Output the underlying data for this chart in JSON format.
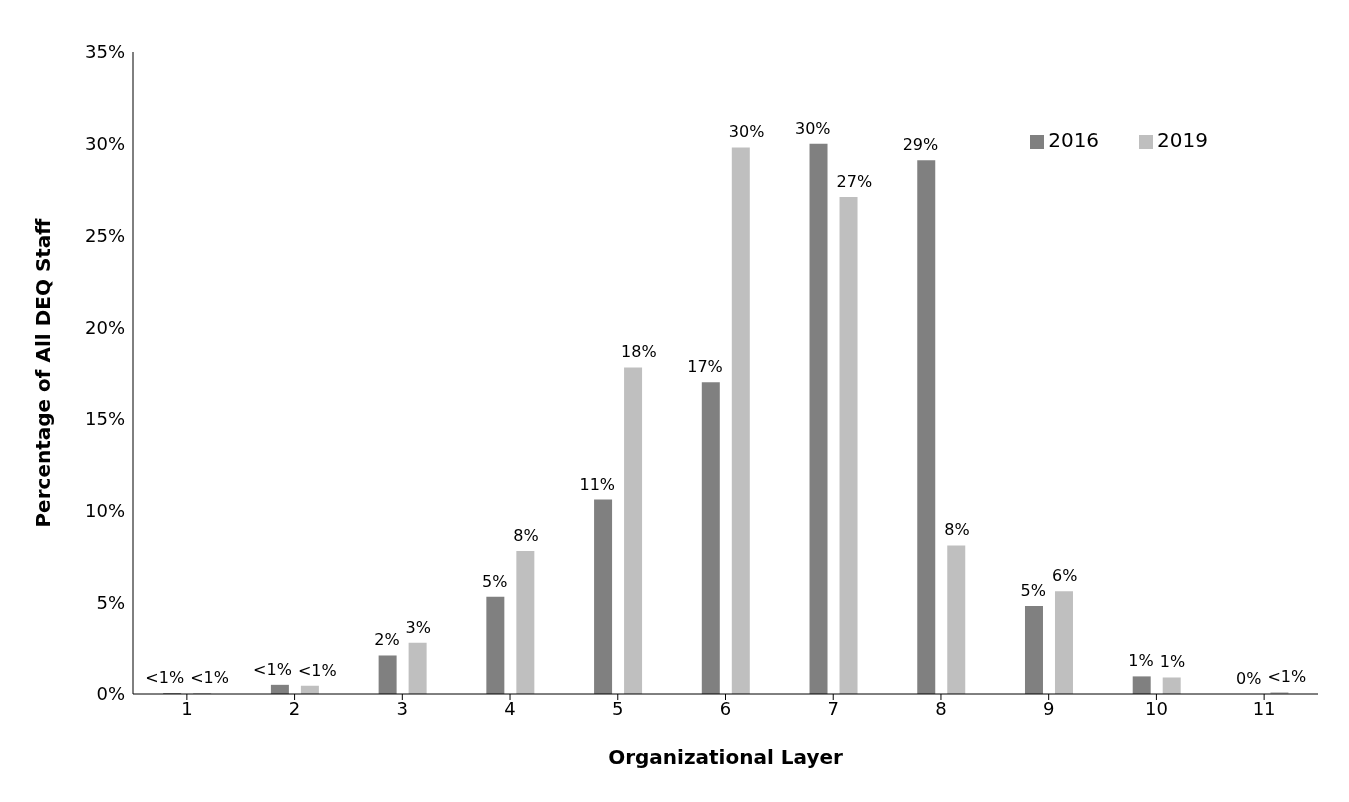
{
  "chart_data": {
    "type": "bar",
    "xlabel": "Organizational Layer",
    "ylabel": "Percentage of  All DEQ Staff",
    "categories": [
      "1",
      "2",
      "3",
      "4",
      "5",
      "6",
      "7",
      "8",
      "9",
      "10",
      "11"
    ],
    "series": [
      {
        "name": "2016",
        "color": "#808080",
        "values": [
          0.05,
          0.5,
          2.1,
          5.3,
          10.6,
          17.0,
          30.0,
          29.1,
          4.8,
          0.96,
          0
        ],
        "value_labels": [
          "<1%",
          "<1%",
          "2%",
          "5%",
          "11%",
          "17%",
          "30%",
          "29%",
          "5%",
          "1%",
          "0%"
        ]
      },
      {
        "name": "2019",
        "color": "#bfbfbf",
        "values": [
          0.05,
          0.45,
          2.8,
          7.8,
          17.8,
          29.8,
          27.1,
          8.1,
          5.6,
          0.9,
          0.1
        ],
        "value_labels": [
          "<1%",
          "<1%",
          "3%",
          "8%",
          "18%",
          "30%",
          "27%",
          "8%",
          "6%",
          "1%",
          "<1%"
        ]
      }
    ],
    "ylim": [
      0,
      35
    ],
    "yticks": [
      {
        "value": 0,
        "label": "0%"
      },
      {
        "value": 5,
        "label": "5%"
      },
      {
        "value": 10,
        "label": "10%"
      },
      {
        "value": 15,
        "label": "15%"
      },
      {
        "value": 20,
        "label": "20%"
      },
      {
        "value": 25,
        "label": "25%"
      },
      {
        "value": 30,
        "label": "30%"
      },
      {
        "value": 35,
        "label": "35%"
      }
    ],
    "legend": "top right",
    "grid": false
  }
}
